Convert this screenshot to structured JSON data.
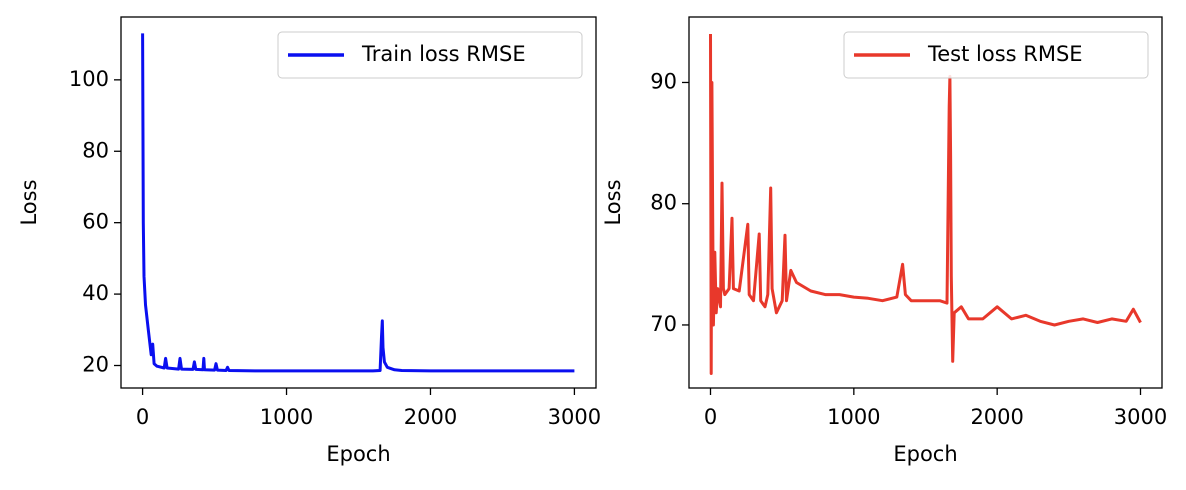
{
  "chart_data": [
    {
      "type": "line",
      "xlabel": "Epoch",
      "ylabel": "Loss",
      "legend": "upper right",
      "xlim": [
        -150,
        3150
      ],
      "xticks": [
        0,
        1000,
        2000,
        3000
      ],
      "ylim": [
        13.7,
        117.6
      ],
      "yticks": [
        20,
        40,
        60,
        80,
        100
      ],
      "x": [
        0,
        5,
        10,
        20,
        40,
        60,
        70,
        80,
        100,
        150,
        160,
        170,
        250,
        260,
        270,
        350,
        360,
        370,
        420,
        425,
        430,
        500,
        510,
        520,
        580,
        590,
        600,
        800,
        1000,
        1300,
        1600,
        1650,
        1660,
        1665,
        1670,
        1680,
        1700,
        1750,
        1800,
        2000,
        2500,
        3000
      ],
      "series": [
        {
          "name": "Train loss RMSE",
          "color": "#0a0ff0",
          "values": [
            113,
            60,
            45,
            37,
            30,
            23,
            26,
            20.5,
            19.8,
            19.3,
            22,
            19.3,
            19,
            22,
            19,
            18.9,
            21,
            18.9,
            18.8,
            22,
            18.8,
            18.7,
            20.5,
            18.7,
            18.6,
            19.5,
            18.6,
            18.5,
            18.5,
            18.5,
            18.5,
            18.6,
            28,
            32.5,
            25,
            21,
            19.5,
            18.8,
            18.6,
            18.5,
            18.5,
            18.5
          ]
        }
      ]
    },
    {
      "type": "line",
      "xlabel": "Epoch",
      "ylabel": "Loss",
      "legend": "upper right",
      "xlim": [
        -150,
        3150
      ],
      "xticks": [
        0,
        1000,
        2000,
        3000
      ],
      "ylim": [
        64.8,
        95.4
      ],
      "yticks": [
        70,
        80,
        90
      ],
      "x": [
        0,
        5,
        10,
        15,
        20,
        30,
        40,
        50,
        70,
        80,
        90,
        100,
        130,
        150,
        160,
        200,
        260,
        270,
        300,
        340,
        350,
        380,
        400,
        420,
        430,
        460,
        500,
        520,
        530,
        560,
        600,
        700,
        800,
        900,
        1000,
        1100,
        1200,
        1300,
        1340,
        1360,
        1400,
        1500,
        1600,
        1650,
        1665,
        1670,
        1675,
        1680,
        1690,
        1700,
        1750,
        1800,
        1900,
        2000,
        2100,
        2200,
        2300,
        2400,
        2500,
        2600,
        2700,
        2800,
        2900,
        2950,
        3000
      ],
      "series": [
        {
          "name": "Test loss RMSE",
          "color": "#e8382b",
          "values": [
            94,
            66,
            90,
            80,
            70,
            76,
            71,
            73,
            71.5,
            81.7,
            73,
            72.5,
            73,
            78.8,
            73,
            72.8,
            78.3,
            72.5,
            72,
            77.5,
            72,
            71.5,
            72.5,
            81.3,
            73,
            71,
            72,
            77.4,
            72,
            74.5,
            73.5,
            72.8,
            72.5,
            72.5,
            72.3,
            72.2,
            72,
            72.3,
            75,
            72.5,
            72,
            72,
            72,
            71.8,
            88,
            90.5,
            84,
            74,
            67,
            71,
            71.5,
            70.5,
            70.5,
            71.5,
            70.5,
            70.8,
            70.3,
            70,
            70.3,
            70.5,
            70.2,
            70.5,
            70.3,
            71.3,
            70.2
          ]
        }
      ]
    }
  ]
}
